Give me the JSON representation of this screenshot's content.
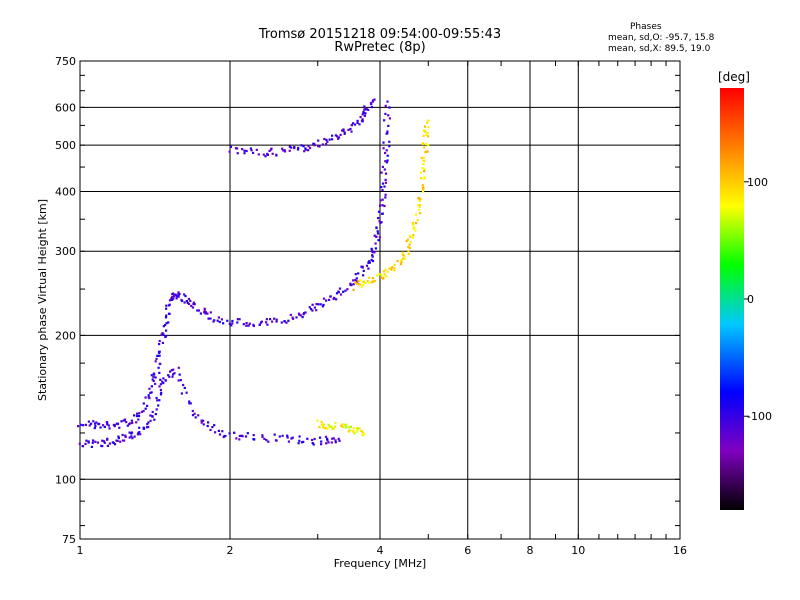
{
  "header": {
    "title_line1": "Tromsø 20151218 09:54:00-09:55:43",
    "title_line2": "RwPretec (8p)",
    "phases_title": "Phases",
    "phases_o": "mean, sd,O: -95.7, 15.8",
    "phases_x": "mean, sd,X: 89.5, 19.0"
  },
  "colorbar": {
    "label": "[deg]",
    "ticks": [
      "100",
      "0",
      "-100"
    ],
    "tick_values": [
      100,
      0,
      -100
    ],
    "range": [
      -180,
      180
    ],
    "colors": [
      "#000000",
      "#8000c0",
      "#0000ff",
      "#00c8ff",
      "#00ff00",
      "#ffff00",
      "#ff8000",
      "#ff0000"
    ]
  },
  "chart_data": {
    "type": "scatter",
    "title": "Tromsø 20151218 09:54:00-09:55:43",
    "subtitle": "RwPretec (8p)",
    "xlabel": "Frequency [MHz]",
    "ylabel": "Stationary phase Virtual Height [km]",
    "x_scale": "log",
    "y_scale": "log",
    "xlim": [
      1,
      16
    ],
    "ylim": [
      75,
      750
    ],
    "x_ticks": [
      1,
      2,
      4,
      6,
      8,
      10,
      16
    ],
    "x_tick_labels": [
      "1",
      "2",
      "4",
      "6",
      "8",
      "10",
      "16"
    ],
    "y_ticks": [
      75,
      100,
      200,
      300,
      400,
      500,
      600,
      750
    ],
    "y_tick_labels": [
      "75",
      "100",
      "200",
      "300",
      "400",
      "500",
      "600",
      "750"
    ],
    "grid": true,
    "color_encoding": "phase [deg]",
    "traces": [
      {
        "mode": "O",
        "phase": -105,
        "points": [
          [
            1.0,
            132
          ],
          [
            1.1,
            130
          ],
          [
            1.2,
            131
          ],
          [
            1.3,
            135
          ],
          [
            1.38,
            155
          ],
          [
            1.43,
            175
          ],
          [
            1.46,
            200
          ],
          [
            1.5,
            235
          ],
          [
            1.55,
            245
          ],
          [
            1.65,
            235
          ],
          [
            1.8,
            222
          ],
          [
            2.0,
            214
          ],
          [
            2.3,
            212
          ],
          [
            2.6,
            218
          ],
          [
            2.9,
            228
          ],
          [
            3.2,
            242
          ],
          [
            3.5,
            258
          ],
          [
            3.75,
            280
          ],
          [
            3.9,
            310
          ],
          [
            4.0,
            350
          ],
          [
            4.05,
            420
          ],
          [
            4.1,
            500
          ],
          [
            4.12,
            620
          ]
        ]
      },
      {
        "mode": "O-echo",
        "phase": -105,
        "points": [
          [
            1.0,
            120
          ],
          [
            1.1,
            119
          ],
          [
            1.2,
            122
          ],
          [
            1.3,
            126
          ],
          [
            1.4,
            135
          ],
          [
            1.45,
            160
          ],
          [
            1.55,
            170
          ],
          [
            1.7,
            135
          ],
          [
            1.9,
            125
          ],
          [
            2.2,
            123
          ],
          [
            2.6,
            122
          ],
          [
            3.0,
            121
          ],
          [
            3.3,
            121
          ]
        ]
      },
      {
        "mode": "O-multi",
        "phase": -110,
        "points": [
          [
            2.0,
            490
          ],
          [
            2.3,
            485
          ],
          [
            2.6,
            488
          ],
          [
            2.9,
            500
          ],
          [
            3.2,
            520
          ],
          [
            3.5,
            550
          ],
          [
            3.7,
            585
          ],
          [
            3.85,
            620
          ]
        ]
      },
      {
        "mode": "X",
        "phase": 95,
        "points": [
          [
            3.5,
            255
          ],
          [
            3.8,
            262
          ],
          [
            4.1,
            270
          ],
          [
            4.4,
            290
          ],
          [
            4.6,
            320
          ],
          [
            4.75,
            370
          ],
          [
            4.85,
            430
          ],
          [
            4.9,
            500
          ],
          [
            4.95,
            560
          ]
        ]
      },
      {
        "mode": "X-echo",
        "phase": 80,
        "points": [
          [
            3.0,
            131
          ],
          [
            3.2,
            130
          ],
          [
            3.5,
            128
          ],
          [
            3.7,
            125
          ]
        ]
      }
    ]
  }
}
